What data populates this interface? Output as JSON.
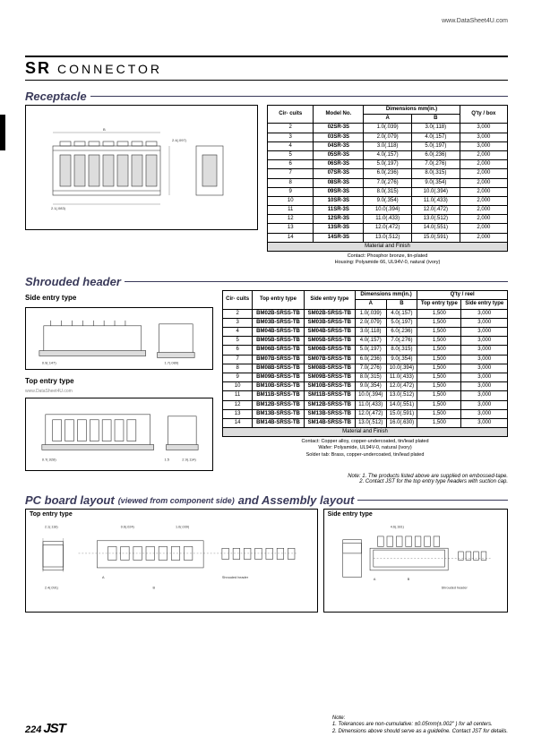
{
  "header": {
    "url": "www.DataSheet4U.com"
  },
  "title": {
    "main": "SR",
    "sub": "CONNECTOR"
  },
  "receptacle": {
    "heading": "Receptacle",
    "cols": [
      "Cir-\ncuits",
      "Model No.",
      "Dimensions mm(in.)",
      "Q'ty / box"
    ],
    "rows": [
      [
        "2",
        "02SR-3S",
        "1.0(.039)",
        "3.0(.118)",
        "3,000"
      ],
      [
        "3",
        "03SR-3S",
        "2.0(.079)",
        "4.0(.157)",
        "3,000"
      ],
      [
        "4",
        "04SR-3S",
        "3.0(.118)",
        "5.0(.197)",
        "3,000"
      ],
      [
        "5",
        "05SR-3S",
        "4.0(.157)",
        "6.0(.236)",
        "2,000"
      ],
      [
        "6",
        "06SR-3S",
        "5.0(.197)",
        "7.0(.276)",
        "2,000"
      ],
      [
        "7",
        "07SR-3S",
        "6.0(.236)",
        "8.0(.315)",
        "2,000"
      ],
      [
        "8",
        "08SR-3S",
        "7.0(.276)",
        "9.0(.354)",
        "2,000"
      ],
      [
        "9",
        "09SR-3S",
        "8.0(.315)",
        "10.0(.394)",
        "2,000"
      ],
      [
        "10",
        "10SR-3S",
        "9.0(.354)",
        "11.0(.433)",
        "2,000"
      ],
      [
        "11",
        "11SR-3S",
        "10.0(.394)",
        "12.0(.472)",
        "2,000"
      ],
      [
        "12",
        "12SR-3S",
        "11.0(.433)",
        "13.0(.512)",
        "2,000"
      ],
      [
        "13",
        "13SR-3S",
        "12.0(.472)",
        "14.0(.551)",
        "2,000"
      ],
      [
        "14",
        "14SR-3S",
        "13.0(.512)",
        "15.0(.591)",
        "2,000"
      ]
    ],
    "material_heading": "Material and Finish",
    "material": [
      "Contact: Phosphor bronze, tin-plated",
      "Housing: Polyamide 66, UL94V-0, natural (ivory)"
    ]
  },
  "shrouded": {
    "heading": "Shrouded header",
    "side_label": "Side entry type",
    "top_label": "Top entry type",
    "watermark": "www.DataSheet4U.com",
    "cols": [
      "Cir-\ncuits",
      "Top entry\ntype",
      "Side entry\ntype",
      "Dimensions mm(in.)",
      "Q'ty / reel"
    ],
    "subcols": [
      "Top\nentry\ntype",
      "Side\nentry\ntype"
    ],
    "rows": [
      [
        "2",
        "BM02B-SRSS-TB",
        "SM02B-SRSS-TB",
        "1.0(.039)",
        "4.0(.157)",
        "1,500",
        "3,000"
      ],
      [
        "3",
        "BM03B-SRSS-TB",
        "SM03B-SRSS-TB",
        "2.0(.079)",
        "5.0(.197)",
        "1,500",
        "3,000"
      ],
      [
        "4",
        "BM04B-SRSS-TB",
        "SM04B-SRSS-TB",
        "3.0(.118)",
        "6.0(.236)",
        "1,500",
        "3,000"
      ],
      [
        "5",
        "BM05B-SRSS-TB",
        "SM05B-SRSS-TB",
        "4.0(.157)",
        "7.0(.276)",
        "1,500",
        "3,000"
      ],
      [
        "6",
        "BM06B-SRSS-TB",
        "SM06B-SRSS-TB",
        "5.0(.197)",
        "8.0(.315)",
        "1,500",
        "3,000"
      ],
      [
        "7",
        "BM07B-SRSS-TB",
        "SM07B-SRSS-TB",
        "6.0(.236)",
        "9.0(.354)",
        "1,500",
        "3,000"
      ],
      [
        "8",
        "BM08B-SRSS-TB",
        "SM08B-SRSS-TB",
        "7.0(.276)",
        "10.0(.394)",
        "1,500",
        "3,000"
      ],
      [
        "9",
        "BM09B-SRSS-TB",
        "SM09B-SRSS-TB",
        "8.0(.315)",
        "11.0(.433)",
        "1,500",
        "3,000"
      ],
      [
        "10",
        "BM10B-SRSS-TB",
        "SM10B-SRSS-TB",
        "9.0(.354)",
        "12.0(.472)",
        "1,500",
        "3,000"
      ],
      [
        "11",
        "BM11B-SRSS-TB",
        "SM11B-SRSS-TB",
        "10.0(.394)",
        "13.0(.512)",
        "1,500",
        "3,000"
      ],
      [
        "12",
        "BM12B-SRSS-TB",
        "SM12B-SRSS-TB",
        "11.0(.433)",
        "14.0(.551)",
        "1,500",
        "3,000"
      ],
      [
        "13",
        "BM13B-SRSS-TB",
        "SM13B-SRSS-TB",
        "12.0(.472)",
        "15.0(.591)",
        "1,500",
        "3,000"
      ],
      [
        "14",
        "BM14B-SRSS-TB",
        "SM14B-SRSS-TB",
        "13.0(.512)",
        "16.0(.630)",
        "1,500",
        "3,000"
      ]
    ],
    "material_heading": "Material and Finish",
    "material": [
      "Contact: Copper alloy, copper-undercoated, tin/lead plated",
      "Wafer: Polyamide, UL94V-0, natural (ivory)",
      "Solder tab: Brass, copper-undercoated, tin/lead plated"
    ],
    "note": [
      "Note: 1. The products listed above are supplied on embossed-tape.",
      "2. Contact JST for the top entry type headers with suction cap."
    ]
  },
  "pcb": {
    "heading1": "PC board layout",
    "heading_sub": "(viewed from component side)",
    "heading2": "and Assembly layout",
    "top_label": "Top entry type",
    "side_label": "Side entry type"
  },
  "footer": {
    "page": "224",
    "logo": "JST",
    "note": [
      "Note:",
      "1. Tolerances are non-cumulative: ±0.05mm(±.002\" ) for all centers.",
      "2. Dimensions above should serve as a guideline.  Contact JST for details."
    ]
  }
}
